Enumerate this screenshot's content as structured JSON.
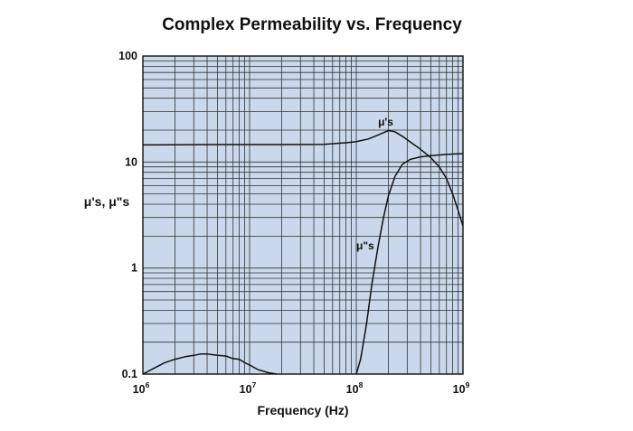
{
  "chart_data": {
    "type": "line",
    "title": "Complex Permeability vs. Frequency",
    "xlabel": "Frequency (Hz)",
    "ylabel": "μ's, μ\"s",
    "x_scale": "log",
    "y_scale": "log",
    "xlim": [
      1000000,
      1000000000
    ],
    "ylim": [
      0.1,
      100
    ],
    "grid": true,
    "x_ticks": [
      {
        "base": "10",
        "exp": "6"
      },
      {
        "base": "10",
        "exp": "7"
      },
      {
        "base": "10",
        "exp": "8"
      },
      {
        "base": "10",
        "exp": "9"
      }
    ],
    "y_ticks": [
      "100",
      "10",
      "1",
      "0.1"
    ],
    "series": [
      {
        "name": "μ's",
        "x": [
          1000000,
          5000000,
          10000000,
          20000000,
          50000000,
          80000000,
          100000000,
          130000000,
          160000000,
          200000000,
          230000000,
          270000000,
          320000000,
          400000000,
          500000000,
          600000000,
          700000000,
          800000000,
          900000000,
          1000000000
        ],
        "y": [
          14.5,
          14.6,
          14.6,
          14.6,
          14.7,
          15.2,
          15.6,
          16.5,
          18.0,
          19.8,
          19.3,
          17.5,
          15.5,
          13.2,
          11.0,
          9.0,
          7.0,
          5.0,
          3.5,
          2.5
        ]
      },
      {
        "name": "μ\"s",
        "x": [
          1000000,
          1300000,
          1600000,
          2000000,
          2500000,
          3000000,
          3500000,
          4000000,
          5000000,
          6000000,
          7000000,
          8000000,
          9000000,
          10000000,
          12000000,
          15000000,
          18000000
        ],
        "y": [
          0.1,
          0.115,
          0.128,
          0.138,
          0.146,
          0.15,
          0.155,
          0.155,
          0.15,
          0.148,
          0.14,
          0.138,
          0.128,
          0.122,
          0.11,
          0.103,
          0.1
        ]
      },
      {
        "name": "μ\"s",
        "x": [
          100000000,
          110000000,
          125000000,
          140000000,
          160000000,
          180000000,
          200000000,
          230000000,
          270000000,
          320000000,
          400000000,
          500000000,
          700000000,
          1000000000
        ],
        "y": [
          0.1,
          0.14,
          0.3,
          0.7,
          1.6,
          3.0,
          4.8,
          7.3,
          9.5,
          10.6,
          11.2,
          11.5,
          11.8,
          12.0
        ]
      }
    ],
    "annotations": [
      {
        "text": "μ's",
        "x": 160000000,
        "y": 22
      },
      {
        "text": "μ\"s",
        "x": 100000000,
        "y": 1.5
      }
    ]
  }
}
